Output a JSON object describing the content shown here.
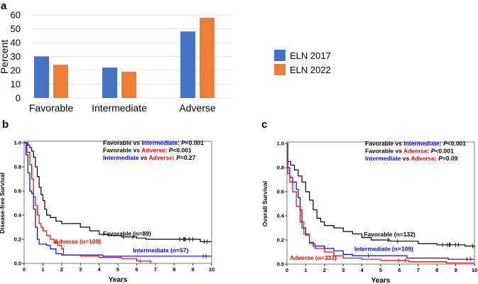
{
  "chart_data": [
    {
      "panel": "a",
      "type": "bar",
      "ylabel": "Percent",
      "xlabel": "",
      "ylim": [
        0,
        60
      ],
      "yticks": [
        "0",
        "10",
        "20",
        "30",
        "40",
        "50",
        "60"
      ],
      "categories": [
        "Favorable",
        "Intermediate",
        "Adverse"
      ],
      "series": [
        {
          "name": "ELN 2017",
          "color": "#4472c4",
          "values": [
            30,
            22,
            48
          ]
        },
        {
          "name": "ELN 2022",
          "color": "#ed7d31",
          "values": [
            24,
            19,
            58
          ]
        }
      ],
      "legend": "right",
      "grid": true
    },
    {
      "panel": "b",
      "type": "line",
      "ylabel": "Disease-free Survival",
      "xlabel": "Years",
      "xlim": [
        0,
        10
      ],
      "ylim": [
        0,
        1
      ],
      "xticks": [
        "0",
        "1",
        "2",
        "3",
        "4",
        "5",
        "6",
        "7",
        "8",
        "9",
        "10"
      ],
      "yticks": [
        "0.0",
        "0.2",
        "0.4",
        "0.6",
        "0.8",
        "1.0"
      ],
      "annotations": [
        [
          {
            "t": "Favorable",
            "c": "#000000"
          },
          {
            "t": " vs ",
            "c": "#000000"
          },
          {
            "t": "Intermediate",
            "c": "#0000ff"
          },
          {
            "t": ": ",
            "c": "#000000"
          },
          {
            "t": "P",
            "c": "#000000",
            "i": true
          },
          {
            "t": "<0.001",
            "c": "#000000"
          }
        ],
        [
          {
            "t": "Favorable",
            "c": "#000000"
          },
          {
            "t": " vs ",
            "c": "#000000"
          },
          {
            "t": "Adverse",
            "c": "#ff0000"
          },
          {
            "t": ": ",
            "c": "#000000"
          },
          {
            "t": "P",
            "c": "#000000",
            "i": true
          },
          {
            "t": "<0.001",
            "c": "#000000"
          }
        ],
        [
          {
            "t": "Intermediate",
            "c": "#0000ff"
          },
          {
            "t": " vs ",
            "c": "#000000"
          },
          {
            "t": "Adverse",
            "c": "#ff0000"
          },
          {
            "t": ": ",
            "c": "#000000"
          },
          {
            "t": "P",
            "c": "#000000",
            "i": true
          },
          {
            "t": "=0.27",
            "c": "#000000"
          }
        ]
      ],
      "series": [
        {
          "name": "Favorable (n=89)",
          "color": "#000000",
          "label_at": [
            4.2,
            0.23
          ],
          "points": [
            [
              0,
              1
            ],
            [
              0.1,
              1
            ],
            [
              0.2,
              0.98
            ],
            [
              0.3,
              0.96
            ],
            [
              0.4,
              0.93
            ],
            [
              0.5,
              0.88
            ],
            [
              0.6,
              0.8
            ],
            [
              0.7,
              0.72
            ],
            [
              0.8,
              0.63
            ],
            [
              0.9,
              0.57
            ],
            [
              1.0,
              0.52
            ],
            [
              1.1,
              0.45
            ],
            [
              1.2,
              0.4
            ],
            [
              1.4,
              0.38
            ],
            [
              1.7,
              0.35
            ],
            [
              2,
              0.33
            ],
            [
              2.5,
              0.33
            ],
            [
              3,
              0.3
            ],
            [
              3.5,
              0.27
            ],
            [
              4,
              0.24
            ],
            [
              4.5,
              0.23
            ],
            [
              5.2,
              0.22
            ],
            [
              6,
              0.21
            ],
            [
              6.5,
              0.2
            ],
            [
              9.3,
              0.2
            ],
            [
              9.4,
              0.18
            ],
            [
              10,
              0.18
            ]
          ],
          "censor": [
            5.3,
            5.8,
            8.3,
            8.5,
            8.55,
            8.6,
            8.8,
            9.0,
            9.6,
            9.75
          ]
        },
        {
          "name": "Adverse (n=108)",
          "color": "#ff0000",
          "label_at": [
            1.6,
            0.165
          ],
          "points": [
            [
              0,
              1
            ],
            [
              0.15,
              0.92
            ],
            [
              0.3,
              0.82
            ],
            [
              0.4,
              0.7
            ],
            [
              0.5,
              0.55
            ],
            [
              0.6,
              0.48
            ],
            [
              0.7,
              0.4
            ],
            [
              0.8,
              0.33
            ],
            [
              0.9,
              0.3
            ],
            [
              1.0,
              0.27
            ],
            [
              1.2,
              0.23
            ],
            [
              1.4,
              0.2
            ],
            [
              1.6,
              0.17
            ],
            [
              1.8,
              0.15
            ],
            [
              2.0,
              0.12
            ],
            [
              2.1,
              0.07
            ],
            [
              3,
              0.06
            ],
            [
              4,
              0.05
            ],
            [
              5.2,
              0.04
            ],
            [
              6,
              0.02
            ],
            [
              6.7,
              0.02
            ],
            [
              6.75,
              0
            ]
          ],
          "censor": [
            6.2
          ]
        },
        {
          "name": "Intermediate (n=57)",
          "color": "#0000ff",
          "label_at": [
            5.8,
            0.09
          ],
          "points": [
            [
              0,
              1
            ],
            [
              0.1,
              0.9
            ],
            [
              0.2,
              0.75
            ],
            [
              0.3,
              0.6
            ],
            [
              0.4,
              0.58
            ],
            [
              0.5,
              0.45
            ],
            [
              0.6,
              0.3
            ],
            [
              0.7,
              0.2
            ],
            [
              0.8,
              0.16
            ],
            [
              1.2,
              0.15
            ],
            [
              1.4,
              0.12
            ],
            [
              1.7,
              0.08
            ],
            [
              2,
              0.07
            ],
            [
              4.1,
              0.07
            ],
            [
              4.2,
              0.06
            ],
            [
              10,
              0.06
            ]
          ],
          "censor": [
            9.55,
            9.7
          ]
        }
      ]
    },
    {
      "panel": "c",
      "type": "line",
      "ylabel": "Overall Survival",
      "xlabel": "Years",
      "xlim": [
        0,
        10
      ],
      "ylim": [
        0,
        1
      ],
      "xticks": [
        "0",
        "1",
        "2",
        "3",
        "4",
        "5",
        "6",
        "7",
        "8",
        "9",
        "10"
      ],
      "yticks": [
        "0.0",
        "0.2",
        "0.4",
        "0.6",
        "0.8",
        "1.0"
      ],
      "annotations": [
        [
          {
            "t": "Favorable",
            "c": "#000000"
          },
          {
            "t": " vs ",
            "c": "#000000"
          },
          {
            "t": "Intermediate",
            "c": "#0000ff"
          },
          {
            "t": ": ",
            "c": "#000000"
          },
          {
            "t": "P",
            "c": "#000000",
            "i": true
          },
          {
            "t": "<0.001",
            "c": "#000000"
          }
        ],
        [
          {
            "t": "Favorable",
            "c": "#000000"
          },
          {
            "t": " vs ",
            "c": "#000000"
          },
          {
            "t": "Adverse",
            "c": "#ff0000"
          },
          {
            "t": ": ",
            "c": "#000000"
          },
          {
            "t": "P",
            "c": "#000000",
            "i": true
          },
          {
            "t": "<0.001",
            "c": "#000000"
          }
        ],
        [
          {
            "t": "Intermediate",
            "c": "#0000ff"
          },
          {
            "t": " vs ",
            "c": "#000000"
          },
          {
            "t": "Adverse",
            "c": "#ff0000"
          },
          {
            "t": ": ",
            "c": "#000000"
          },
          {
            "t": "P",
            "c": "#000000",
            "i": true
          },
          {
            "t": "=0.09",
            "c": "#000000"
          }
        ]
      ],
      "series": [
        {
          "name": "Favorable (n=132)",
          "color": "#000000",
          "label_at": [
            4.1,
            0.23
          ],
          "points": [
            [
              0,
              1
            ],
            [
              0.05,
              0.85
            ],
            [
              0.2,
              0.82
            ],
            [
              0.4,
              0.78
            ],
            [
              0.6,
              0.73
            ],
            [
              0.8,
              0.68
            ],
            [
              1,
              0.6
            ],
            [
              1.2,
              0.53
            ],
            [
              1.4,
              0.45
            ],
            [
              1.6,
              0.38
            ],
            [
              1.8,
              0.35
            ],
            [
              2,
              0.32
            ],
            [
              2.5,
              0.3
            ],
            [
              3,
              0.27
            ],
            [
              3.5,
              0.25
            ],
            [
              4,
              0.22
            ],
            [
              4.5,
              0.2
            ],
            [
              5.5,
              0.19
            ],
            [
              7,
              0.17
            ],
            [
              8,
              0.16
            ],
            [
              9.5,
              0.15
            ],
            [
              10,
              0.14
            ]
          ],
          "censor": [
            5.4,
            5.9,
            8.3,
            8.55,
            8.65,
            8.7,
            9.0,
            9.15,
            9.9
          ]
        },
        {
          "name": "Intermediate (n=109)",
          "color": "#0000ff",
          "label_at": [
            3.6,
            0.11
          ],
          "points": [
            [
              0,
              1
            ],
            [
              0.05,
              0.8
            ],
            [
              0.15,
              0.72
            ],
            [
              0.3,
              0.68
            ],
            [
              0.5,
              0.62
            ],
            [
              0.6,
              0.55
            ],
            [
              0.7,
              0.45
            ],
            [
              0.8,
              0.3
            ],
            [
              1,
              0.24
            ],
            [
              1.2,
              0.18
            ],
            [
              1.4,
              0.15
            ],
            [
              2,
              0.13
            ],
            [
              2.5,
              0.11
            ],
            [
              3,
              0.08
            ],
            [
              3.5,
              0.07
            ],
            [
              6.3,
              0.07
            ],
            [
              6.4,
              0.05
            ],
            [
              8.5,
              0.05
            ],
            [
              8.6,
              0.04
            ],
            [
              10,
              0.04
            ]
          ],
          "censor": [
            4.35,
            9.6,
            9.8
          ]
        },
        {
          "name": "Adverse (n=333)",
          "color": "#ff0000",
          "label_at": [
            0.15,
            0.035
          ],
          "points": [
            [
              0,
              1
            ],
            [
              0.05,
              0.75
            ],
            [
              0.15,
              0.68
            ],
            [
              0.3,
              0.6
            ],
            [
              0.5,
              0.48
            ],
            [
              0.7,
              0.35
            ],
            [
              0.9,
              0.25
            ],
            [
              1.2,
              0.17
            ],
            [
              1.5,
              0.13
            ],
            [
              2,
              0.1
            ],
            [
              2.5,
              0.07
            ],
            [
              3,
              0.05
            ],
            [
              4,
              0.04
            ],
            [
              5,
              0.03
            ],
            [
              6.5,
              0.02
            ],
            [
              8.5,
              0.01
            ],
            [
              10,
              0.01
            ]
          ],
          "censor": [
            5.95,
            6.3
          ]
        }
      ]
    }
  ],
  "panel_labels": [
    "a",
    "b",
    "c"
  ]
}
